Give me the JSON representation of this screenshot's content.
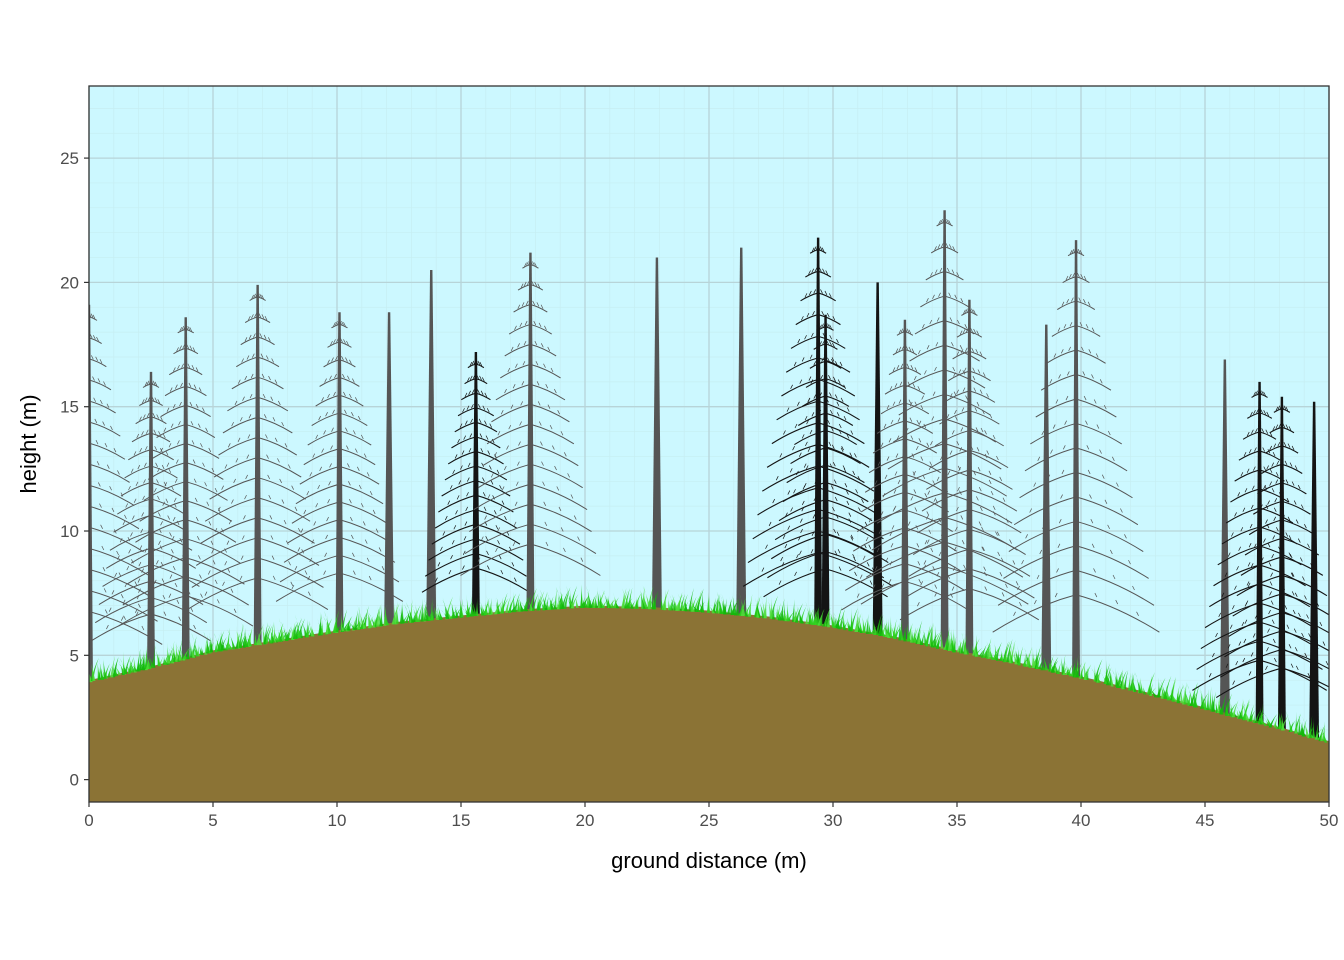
{
  "chart_data": {
    "type": "area",
    "xlabel": "ground distance (m)",
    "ylabel": "height (m)",
    "xlim": [
      0,
      50
    ],
    "ylim": [
      -0.9,
      27.9
    ],
    "x_ticks": [
      0,
      5,
      10,
      15,
      20,
      25,
      30,
      35,
      40,
      45,
      50
    ],
    "y_ticks": [
      0,
      5,
      10,
      15,
      20,
      25
    ],
    "grid": true,
    "colors": {
      "sky": "#ccf8ff",
      "ground": "#8b7335",
      "grass": "#2ed11f",
      "grid_major": "#b7d4d8",
      "grid_minor": "#c6eef2",
      "axis_text": "#4d4d4d"
    },
    "ground_profile": {
      "x": [
        0,
        2.5,
        5,
        7.5,
        10,
        12.5,
        15,
        17.5,
        20,
        22.5,
        25,
        27.5,
        30,
        32.5,
        35,
        37.5,
        40,
        42.5,
        45,
        47.5,
        50
      ],
      "y": [
        4.0,
        4.55,
        5.2,
        5.6,
        6.0,
        6.35,
        6.6,
        6.85,
        7.0,
        6.95,
        6.8,
        6.55,
        6.2,
        5.75,
        5.2,
        4.7,
        4.15,
        3.55,
        2.9,
        2.25,
        1.55
      ]
    },
    "trees": [
      {
        "x": 0.0,
        "top": 19.1,
        "kind": "conifer",
        "shade": "gray"
      },
      {
        "x": 2.5,
        "top": 16.4,
        "kind": "conifer",
        "shade": "gray"
      },
      {
        "x": 3.9,
        "top": 18.6,
        "kind": "conifer",
        "shade": "gray"
      },
      {
        "x": 6.8,
        "top": 19.9,
        "kind": "conifer",
        "shade": "gray"
      },
      {
        "x": 10.1,
        "top": 18.8,
        "kind": "conifer",
        "shade": "gray"
      },
      {
        "x": 12.1,
        "top": 18.8,
        "kind": "snag",
        "shade": "gray"
      },
      {
        "x": 13.8,
        "top": 20.5,
        "kind": "snag",
        "shade": "gray"
      },
      {
        "x": 15.6,
        "top": 17.2,
        "kind": "conifer",
        "shade": "black"
      },
      {
        "x": 17.8,
        "top": 21.2,
        "kind": "conifer",
        "shade": "gray"
      },
      {
        "x": 22.9,
        "top": 21.0,
        "kind": "snag",
        "shade": "gray"
      },
      {
        "x": 26.3,
        "top": 21.4,
        "kind": "snag",
        "shade": "gray"
      },
      {
        "x": 29.4,
        "top": 21.8,
        "kind": "conifer",
        "shade": "black"
      },
      {
        "x": 29.7,
        "top": 18.7,
        "kind": "conifer",
        "shade": "black"
      },
      {
        "x": 31.8,
        "top": 20.0,
        "kind": "snag",
        "shade": "black"
      },
      {
        "x": 32.9,
        "top": 18.5,
        "kind": "conifer",
        "shade": "gray"
      },
      {
        "x": 34.5,
        "top": 22.9,
        "kind": "conifer",
        "shade": "gray"
      },
      {
        "x": 35.5,
        "top": 19.3,
        "kind": "conifer",
        "shade": "gray"
      },
      {
        "x": 38.6,
        "top": 18.3,
        "kind": "snag",
        "shade": "gray"
      },
      {
        "x": 39.8,
        "top": 21.7,
        "kind": "conifer",
        "shade": "gray"
      },
      {
        "x": 45.8,
        "top": 16.9,
        "kind": "snag",
        "shade": "gray"
      },
      {
        "x": 47.2,
        "top": 16.0,
        "kind": "conifer",
        "shade": "black"
      },
      {
        "x": 48.1,
        "top": 15.4,
        "kind": "conifer",
        "shade": "black"
      },
      {
        "x": 49.4,
        "top": 15.2,
        "kind": "snag",
        "shade": "black"
      }
    ]
  }
}
